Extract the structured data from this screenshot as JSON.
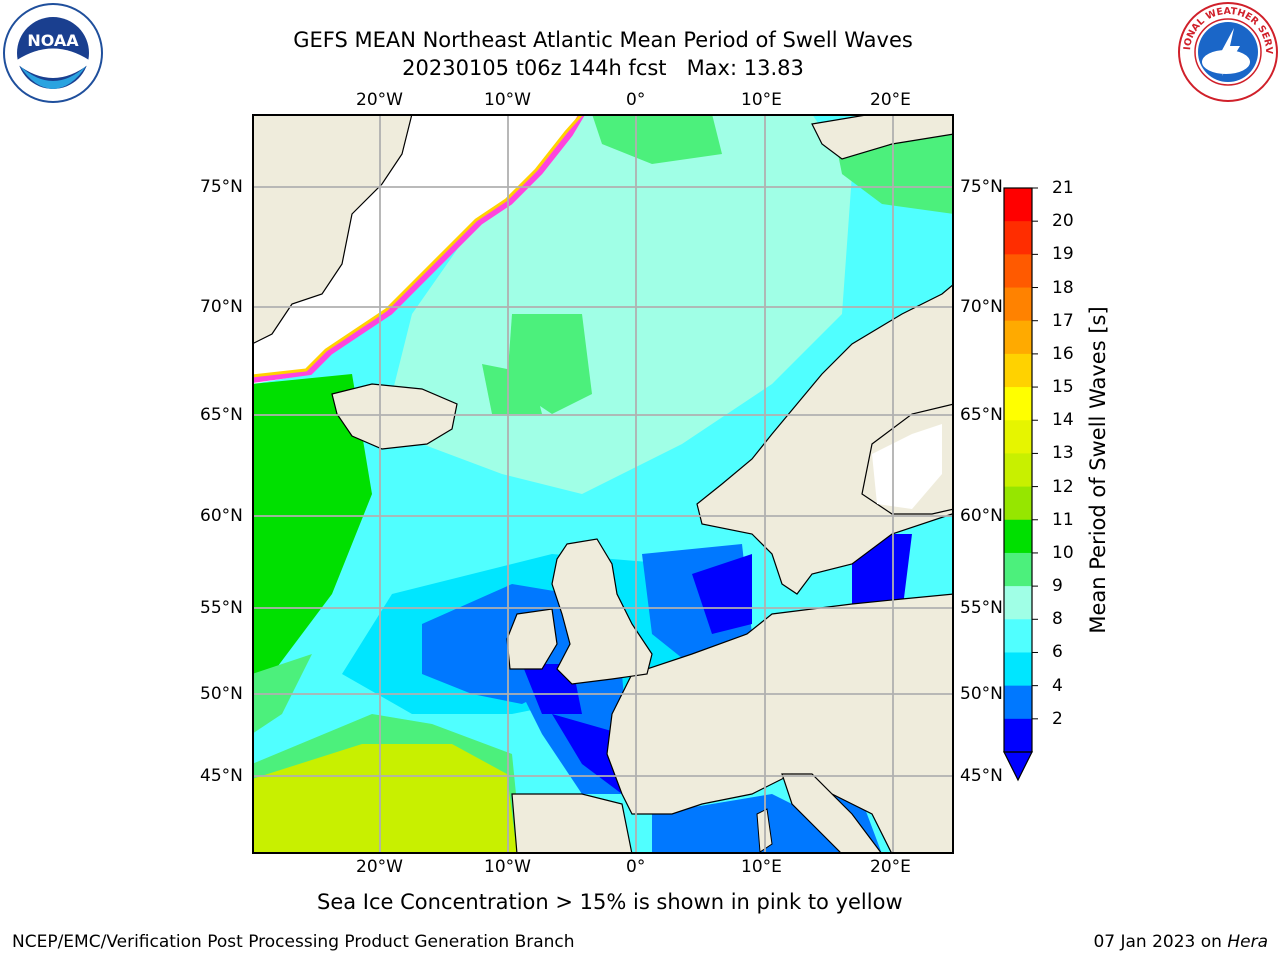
{
  "header": {
    "title_line1": "GEFS MEAN Northeast Atlantic Mean Period of Swell Waves",
    "title_line2": "20230105 t06z 144h fcst   Max: 13.83"
  },
  "logos": {
    "left": {
      "name": "NOAA",
      "label": "NOAA"
    },
    "right": {
      "name": "National Weather Service",
      "label": "NATIONAL WEATHER SERVICE"
    }
  },
  "map": {
    "lon_ticks_top": [
      "20°W",
      "10°W",
      "0°",
      "10°E",
      "20°E"
    ],
    "lon_ticks_bottom": [
      "20°W",
      "10°W",
      "0°",
      "10°E",
      "20°E"
    ],
    "lat_ticks_left": [
      "75°N",
      "70°N",
      "65°N",
      "60°N",
      "55°N",
      "50°N",
      "45°N"
    ],
    "lat_ticks_right": [
      "75°N",
      "70°N",
      "65°N",
      "60°N",
      "55°N",
      "50°N",
      "45°N"
    ],
    "colors": {
      "land": "#efecdc",
      "ice_free_white": "#ffffff",
      "coast": "#000000",
      "grid": "#b0b0b0"
    }
  },
  "colorbar": {
    "label": "Mean Period of Swell Waves [s]",
    "ticks": [
      "21",
      "20",
      "19",
      "18",
      "17",
      "16",
      "15",
      "14",
      "13",
      "12",
      "11",
      "10",
      "9",
      "8",
      "6",
      "4",
      "2"
    ],
    "colors_top_to_bottom": [
      "#ff0000",
      "#ff2d00",
      "#ff5a00",
      "#ff8200",
      "#ffaa00",
      "#ffd200",
      "#ffff00",
      "#e6f500",
      "#c8f000",
      "#96e600",
      "#00e000",
      "#4cf07c",
      "#a0ffe6",
      "#50ffff",
      "#00e6ff",
      "#0078ff",
      "#0000ff"
    ]
  },
  "caption": "Sea Ice Concentration > 15% is shown in pink to yellow",
  "footer": {
    "left": "NCEP/EMC/Verification Post Processing Product Generation Branch",
    "right_date": "07 Jan 2023 on ",
    "right_host": "Hera"
  }
}
